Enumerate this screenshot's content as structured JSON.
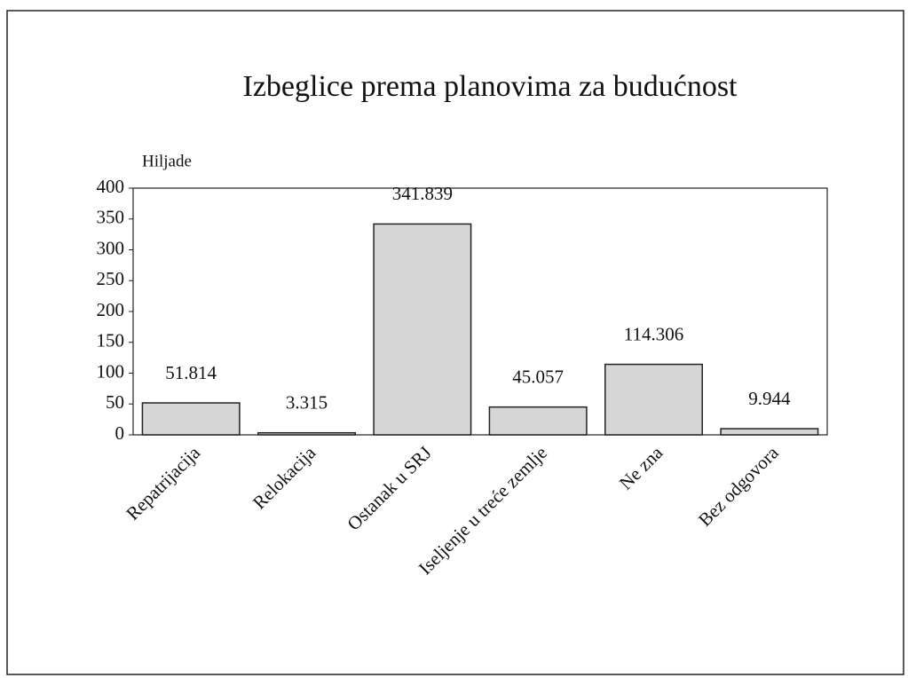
{
  "chart_data": {
    "type": "bar",
    "title": "Izbeglice prema planovima za budućnost",
    "y_label": "Hiljade",
    "categories": [
      "Repatrijacija",
      "Relokacija",
      "Ostanak u SRJ",
      "Iseljenje u treće zemlje",
      "Ne zna",
      "Bez odgovora"
    ],
    "values": [
      51.814,
      3.315,
      341.839,
      45.057,
      114.306,
      9.944
    ],
    "color": "#d6d6d6",
    "ylim": [
      0,
      400
    ],
    "yticks": [
      0,
      50,
      100,
      150,
      200,
      250,
      300,
      350,
      400
    ],
    "grid": false
  }
}
